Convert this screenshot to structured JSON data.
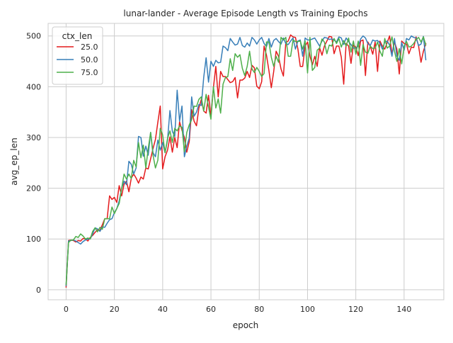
{
  "chart_data": {
    "type": "line",
    "title": "lunar-lander - Average Episode Length vs Training Epochs",
    "xlabel": "epoch",
    "ylabel": "avg_ep_len",
    "xlim": [
      -7.45,
      156.45
    ],
    "ylim": [
      -19.7,
      524.7
    ],
    "xticks": [
      0,
      20,
      40,
      60,
      80,
      100,
      120,
      140
    ],
    "yticks": [
      0,
      100,
      200,
      300,
      400,
      500
    ],
    "grid": true,
    "legend": {
      "title": "ctx_len",
      "placement": "top-left"
    },
    "series": [
      {
        "name": "25.0",
        "color": "#e41a1c",
        "values": [
          5,
          97,
          98,
          97,
          94,
          97,
          96,
          101,
          100,
          96,
          103,
          107,
          113,
          118,
          117,
          128,
          140,
          140,
          185,
          178,
          182,
          172,
          205,
          185,
          208,
          214,
          193,
          220,
          228,
          220,
          210,
          222,
          218,
          240,
          238,
          258,
          278,
          296,
          330,
          362,
          238,
          262,
          275,
          301,
          271,
          300,
          280,
          331,
          314,
          300,
          271,
          292,
          355,
          332,
          323,
          358,
          375,
          352,
          348,
          383,
          341,
          398,
          440,
          380,
          430,
          420,
          420,
          414,
          408,
          410,
          418,
          378,
          413,
          413,
          417,
          430,
          418,
          442,
          437,
          401,
          396,
          410,
          480,
          462,
          432,
          398,
          430,
          470,
          460,
          435,
          421,
          487,
          490,
          502,
          498,
          497,
          475,
          440,
          440,
          480,
          488,
          460,
          443,
          460,
          440,
          477,
          462,
          480,
          490,
          499,
          498,
          465,
          480,
          480,
          458,
          405,
          485,
          480,
          446,
          482,
          478,
          461,
          490,
          492,
          422,
          488,
          480,
          464,
          488,
          430,
          490,
          480,
          474,
          487,
          500,
          464,
          488,
          474,
          425,
          490,
          485,
          484,
          465,
          478,
          477,
          498,
          480,
          448,
          470,
          485
        ]
      },
      {
        "name": "50.0",
        "color": "#377eb8",
        "values": [
          8,
          96,
          97,
          98,
          96,
          93,
          90,
          95,
          98,
          100,
          100,
          110,
          122,
          120,
          115,
          124,
          123,
          131,
          138,
          140,
          152,
          160,
          175,
          200,
          214,
          207,
          253,
          247,
          228,
          240,
          302,
          300,
          263,
          283,
          265,
          310,
          270,
          262,
          295,
          275,
          290,
          270,
          295,
          353,
          312,
          302,
          393,
          332,
          362,
          262,
          283,
          299,
          380,
          342,
          350,
          365,
          363,
          418,
          457,
          409,
          450,
          440,
          452,
          447,
          448,
          480,
          477,
          471,
          495,
          488,
          482,
          484,
          497,
          481,
          478,
          486,
          480,
          497,
          492,
          484,
          492,
          497,
          485,
          479,
          495,
          478,
          491,
          495,
          489,
          484,
          496,
          485,
          483,
          490,
          496,
          474,
          490,
          492,
          460,
          496,
          492,
          492,
          494,
          496,
          488,
          480,
          490,
          497,
          496,
          493,
          494,
          492,
          488,
          498,
          496,
          483,
          496,
          489,
          483,
          476,
          476,
          480,
          494,
          500,
          496,
          485,
          481,
          492,
          490,
          491,
          486,
          474,
          488,
          490,
          482,
          460,
          495,
          460,
          452,
          487,
          472,
          495,
          492,
          500,
          497,
          496,
          481,
          484,
          499,
          453
        ]
      },
      {
        "name": "75.0",
        "color": "#4daf4a",
        "values": [
          10,
          93,
          98,
          98,
          105,
          103,
          110,
          106,
          100,
          102,
          100,
          115,
          122,
          114,
          123,
          119,
          140,
          140,
          140,
          163,
          150,
          160,
          170,
          200,
          228,
          218,
          228,
          219,
          255,
          242,
          290,
          260,
          285,
          240,
          278,
          310,
          265,
          240,
          255,
          318,
          305,
          270,
          298,
          313,
          290,
          318,
          313,
          323,
          320,
          272,
          310,
          325,
          335,
          362,
          361,
          375,
          380,
          352,
          385,
          360,
          336,
          400,
          358,
          376,
          348,
          405,
          418,
          420,
          455,
          432,
          465,
          458,
          463,
          436,
          422,
          440,
          470,
          435,
          428,
          438,
          430,
          420,
          426,
          488,
          488,
          458,
          440,
          460,
          448,
          497,
          492,
          497,
          460,
          460,
          492,
          489,
          489,
          490,
          474,
          490,
          427,
          497,
          432,
          438,
          472,
          476,
          494,
          488,
          465,
          482,
          480,
          495,
          485,
          495,
          478,
          491,
          480,
          496,
          468,
          490,
          464,
          490,
          442,
          483,
          468,
          466,
          480,
          475,
          476,
          488,
          470,
          460,
          495,
          476,
          480,
          498,
          470,
          450,
          475,
          445,
          479,
          489,
          478,
          480,
          485,
          493,
          497,
          488,
          498,
          482
        ]
      }
    ]
  }
}
